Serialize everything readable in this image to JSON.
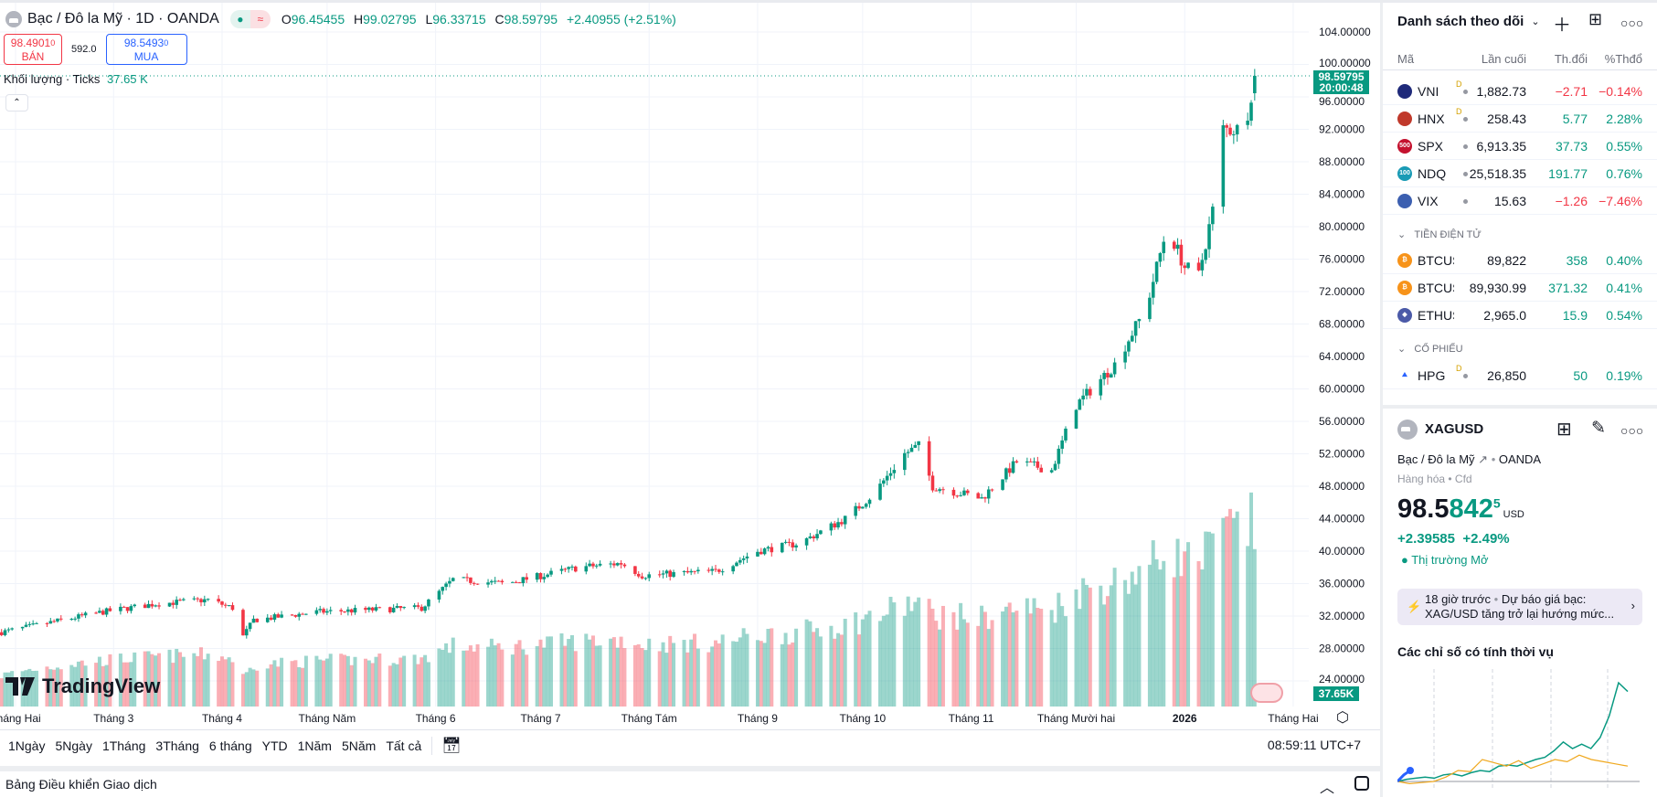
{
  "header": {
    "title": "Bạc / Đô la Mỹ · 1D · OANDA",
    "open_label": "O",
    "open": "96.45455",
    "high_label": "H",
    "high": "99.02795",
    "low_label": "L",
    "low": "96.33715",
    "close_label": "C",
    "close": "98.59795",
    "change": "+2.40955 (+2.51%)",
    "status_icon": "market-open-dot",
    "delay_icon": "approx-icon"
  },
  "trade": {
    "sell_price": "98.4901",
    "sell_sup": "0",
    "sell_label": "BÁN",
    "spread": "592.0",
    "buy_price": "98.5493",
    "buy_sup": "0",
    "buy_label": "MUA"
  },
  "volume_legend": {
    "label": "Khối lượng · Ticks",
    "value": "37.65 K"
  },
  "price_tag": {
    "price": "98.59795",
    "countdown": "20:00:48"
  },
  "volume_tag": "37.65K",
  "colors": {
    "up": "#089981",
    "down": "#f23645",
    "accent": "#2962ff"
  },
  "chart_data": {
    "type": "candlestick",
    "title": "Bạc / Đô la Mỹ · 1D · OANDA",
    "y_ticks": [
      "104.00000",
      "100.00000",
      "96.00000",
      "92.00000",
      "88.00000",
      "84.00000",
      "80.00000",
      "76.00000",
      "72.00000",
      "68.00000",
      "64.00000",
      "60.00000",
      "56.00000",
      "52.00000",
      "48.00000",
      "44.00000",
      "40.00000",
      "36.00000",
      "32.00000",
      "28.00000",
      "24.00000"
    ],
    "ylim": [
      22,
      106
    ],
    "x_ticks": [
      {
        "label": "Tháng Hai",
        "date": "2025-02-01"
      },
      {
        "label": "Tháng 3",
        "date": "2025-03-01"
      },
      {
        "label": "Tháng 4",
        "date": "2025-04-01"
      },
      {
        "label": "Tháng Năm",
        "date": "2025-05-01"
      },
      {
        "label": "Tháng 6",
        "date": "2025-06-01"
      },
      {
        "label": "Tháng 7",
        "date": "2025-07-01"
      },
      {
        "label": "Tháng Tám",
        "date": "2025-08-01"
      },
      {
        "label": "Tháng 9",
        "date": "2025-09-01"
      },
      {
        "label": "Tháng 10",
        "date": "2025-10-01"
      },
      {
        "label": "Tháng 11",
        "date": "2025-11-01"
      },
      {
        "label": "Tháng Mười hai",
        "date": "2025-12-01"
      },
      {
        "label": "2026",
        "date": "2026-01-01",
        "bold": true
      },
      {
        "label": "Tháng Hai",
        "date": "2026-02-01"
      }
    ],
    "approx_close": [
      [
        "2025-01-28",
        30
      ],
      [
        "2025-02-26",
        32.5
      ],
      [
        "2025-03-13",
        33.5
      ],
      [
        "2025-03-28",
        34
      ],
      [
        "2025-04-04",
        33
      ],
      [
        "2025-04-07",
        29.5
      ],
      [
        "2025-04-10",
        31.5
      ],
      [
        "2025-04-28",
        32.5
      ],
      [
        "2025-05-28",
        33
      ],
      [
        "2025-06-06",
        36.5
      ],
      [
        "2025-06-21",
        36
      ],
      [
        "2025-07-12",
        38
      ],
      [
        "2025-07-24",
        38.5
      ],
      [
        "2025-07-30",
        37
      ],
      [
        "2025-08-20",
        37.5
      ],
      [
        "2025-09-01",
        40
      ],
      [
        "2025-09-13",
        41
      ],
      [
        "2025-09-26",
        44
      ],
      [
        "2025-10-04",
        47
      ],
      [
        "2025-10-13",
        52
      ],
      [
        "2025-10-17",
        53
      ],
      [
        "2025-10-21",
        48
      ],
      [
        "2025-11-04",
        46.5
      ],
      [
        "2025-11-14",
        51
      ],
      [
        "2025-11-24",
        50
      ],
      [
        "2025-12-01",
        58
      ],
      [
        "2025-12-12",
        63
      ],
      [
        "2025-12-21",
        70
      ],
      [
        "2025-12-27",
        80
      ],
      [
        "2026-01-01",
        75
      ],
      [
        "2026-01-05",
        74
      ],
      [
        "2026-01-09",
        82
      ],
      [
        "2026-01-12",
        92
      ],
      [
        "2026-01-18",
        92
      ],
      [
        "2026-01-21",
        98.59795
      ]
    ],
    "grid": true
  },
  "time_axis_settings_icon": "gear-icon",
  "range_bar": {
    "items": [
      "1Ngày",
      "5Ngày",
      "1Tháng",
      "3Tháng",
      "6 tháng",
      "YTD",
      "1Năm",
      "5Năm",
      "Tất cả"
    ],
    "clock": "08:59:11 UTC+7"
  },
  "bottom_panel": {
    "title": "Bảng Điều khiển Giao dịch"
  },
  "watchlist": {
    "title": "Danh sách theo dõi",
    "columns": [
      "Mã",
      "Lần cuối",
      "Th.đổi",
      "%Thđổ"
    ],
    "rows": [
      {
        "sym": "VNI",
        "d": "D",
        "last": "1,882.73",
        "chg": "−2.71",
        "pct": "−0.14%",
        "dir": "dn",
        "logo": "#1f2a7a",
        "lt": ""
      },
      {
        "sym": "HNX",
        "d": "D",
        "last": "258.43",
        "chg": "5.77",
        "pct": "2.28%",
        "dir": "up",
        "logo": "#c0392b",
        "lt": ""
      },
      {
        "sym": "SPX",
        "d": "",
        "last": "6,913.35",
        "chg": "37.73",
        "pct": "0.55%",
        "dir": "up",
        "logo": "#c4122f",
        "lt": "500"
      },
      {
        "sym": "NDQ",
        "d": "",
        "last": "25,518.35",
        "chg": "191.77",
        "pct": "0.76%",
        "dir": "up",
        "logo": "#1a9bb5",
        "lt": "100"
      },
      {
        "sym": "VIX",
        "d": "",
        "last": "15.63",
        "chg": "−1.26",
        "pct": "−7.46%",
        "dir": "dn",
        "logo": "#3c5fb0",
        "lt": ""
      }
    ],
    "crypto_section": "TIỀN ĐIỆN TỬ",
    "crypto": [
      {
        "sym": "BTCUSD",
        "last": "89,822",
        "chg": "358",
        "pct": "0.40%",
        "dir": "up",
        "logo": "#f7931a",
        "lt": "₿"
      },
      {
        "sym": "BTCUSD",
        "last": "89,930.99",
        "chg": "371.32",
        "pct": "0.41%",
        "dir": "up",
        "logo": "#f7931a",
        "lt": "₿"
      },
      {
        "sym": "ETHUSD",
        "last": "2,965.0",
        "chg": "15.9",
        "pct": "0.54%",
        "dir": "up",
        "logo": "#4b5aa8",
        "lt": "◆"
      }
    ],
    "stocks_section": "CỔ PHIẾU",
    "stocks": [
      {
        "sym": "HPG",
        "d": "D",
        "last": "26,850",
        "chg": "50",
        "pct": "0.19%",
        "dir": "up"
      }
    ]
  },
  "details": {
    "symbol": "XAGUSD",
    "name": "Bạc / Đô la Mỹ",
    "exchange": "OANDA",
    "category": "Hàng hóa",
    "type": "Cfd",
    "price_main": "98.5",
    "price_green": "842",
    "price_sup": "5",
    "currency": "USD",
    "change": "+2.39585",
    "change_pct": "+2.49%",
    "market_status": "Thị trường Mở",
    "news_time": "18 giờ trước",
    "news_line1": "Dự báo giá bạc:",
    "news_line2": "XAG/USD tăng trở lại hướng mức...",
    "seasonal_title": "Các chỉ số có tính thời vụ",
    "seasonal": {
      "colors": [
        "#089981",
        "#f0a81e",
        "#2962ff"
      ],
      "green": [
        0,
        2,
        3,
        4,
        3,
        6,
        7,
        5,
        8,
        10,
        9,
        14,
        15,
        14,
        17,
        20,
        22,
        28,
        36,
        30,
        34,
        30,
        40,
        60,
        90,
        82
      ],
      "orange": [
        0,
        -2,
        -1,
        0,
        4,
        10,
        9,
        20,
        17,
        14,
        19,
        12,
        16,
        20,
        18,
        24,
        20,
        18,
        16,
        14
      ],
      "blue": [
        0,
        6,
        10
      ]
    }
  }
}
